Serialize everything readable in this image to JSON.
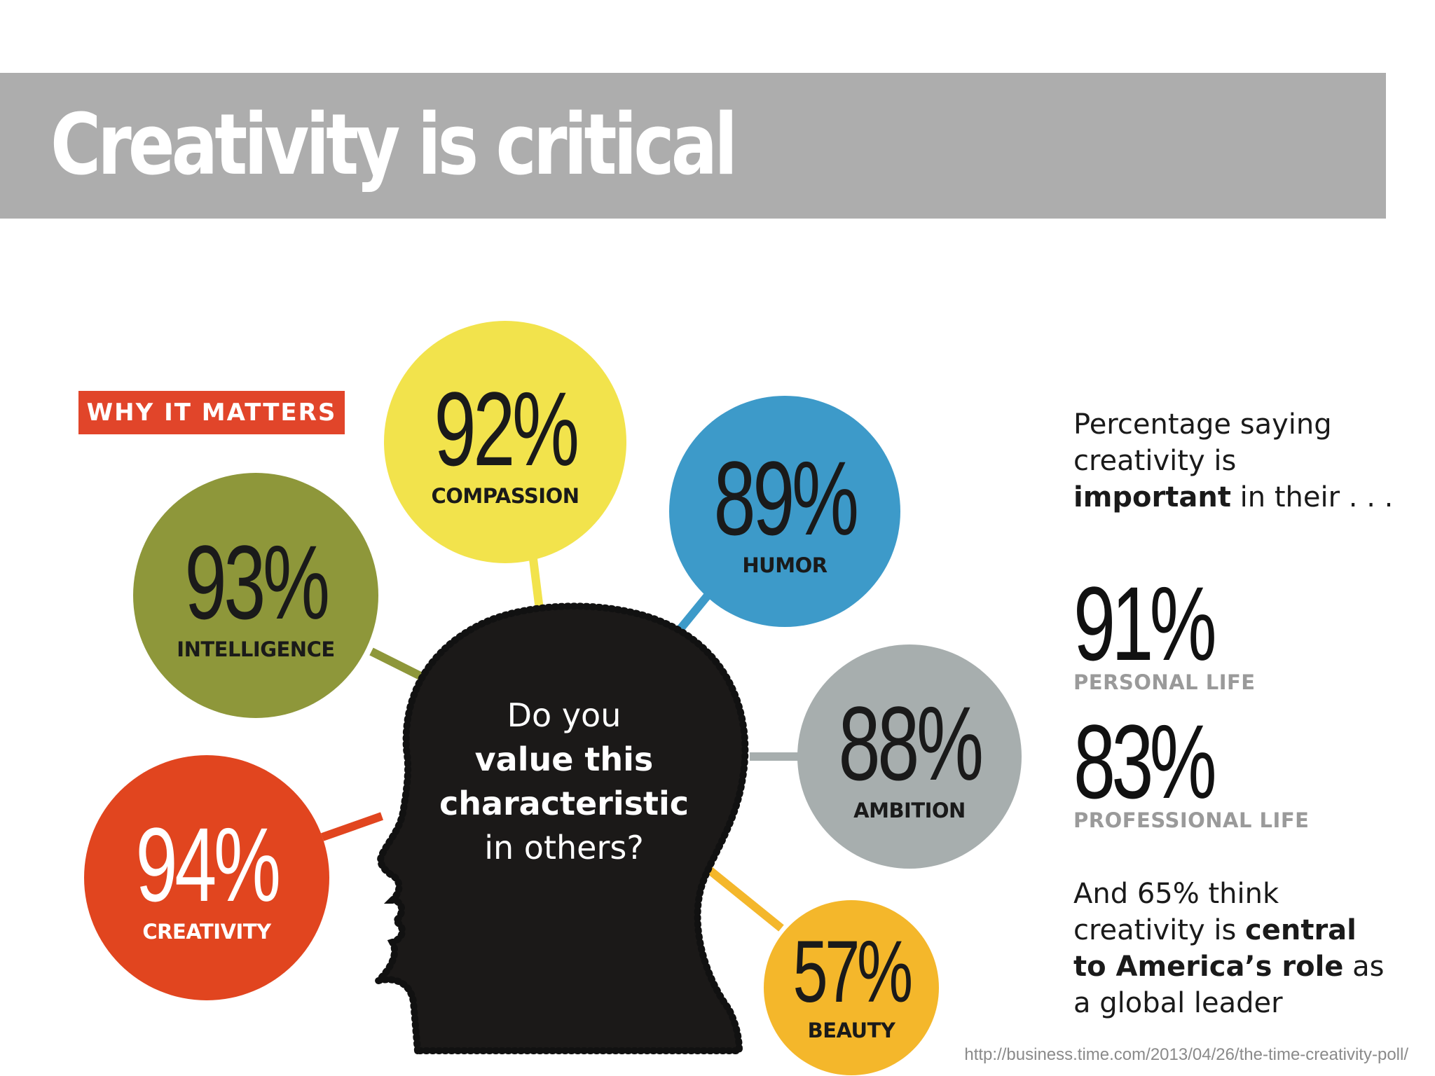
{
  "title": "Creativity is critical",
  "badge": "WHY IT MATTERS",
  "question": {
    "line1": "Do you",
    "line2": "value this",
    "line3": "characteristic",
    "line4": "in others?"
  },
  "traits": [
    {
      "pct": "92%",
      "label": "COMPASSION",
      "color": "#f2e34c",
      "text_color": "#1a1a1a"
    },
    {
      "pct": "89%",
      "label": "HUMOR",
      "color": "#3d9ac9",
      "text_color": "#1a1a1a"
    },
    {
      "pct": "93%",
      "label": "INTELLIGENCE",
      "color": "#8e973a",
      "text_color": "#1a1a1a"
    },
    {
      "pct": "88%",
      "label": "AMBITION",
      "color": "#a7aeae",
      "text_color": "#1a1a1a"
    },
    {
      "pct": "94%",
      "label": "CREATIVITY",
      "color": "#e1451f",
      "text_color": "#ffffff"
    },
    {
      "pct": "57%",
      "label": "BEAUTY",
      "color": "#f4b72b",
      "text_color": "#1a1a1a"
    }
  ],
  "side": {
    "intro_pre": "Percentage saying creativity is ",
    "intro_bold": "important",
    "intro_post": " in their . . .",
    "stat1_pct": "91%",
    "stat1_label": "PERSONAL LIFE",
    "stat2_pct": "83%",
    "stat2_label": "PROFESSIONAL LIFE",
    "outro_pre": "And 65% think creativity is ",
    "outro_bold": "central to America’s role",
    "outro_post": " as a global leader"
  },
  "source": "http://business.time.com/2013/04/26/the-time-creativity-poll/"
}
